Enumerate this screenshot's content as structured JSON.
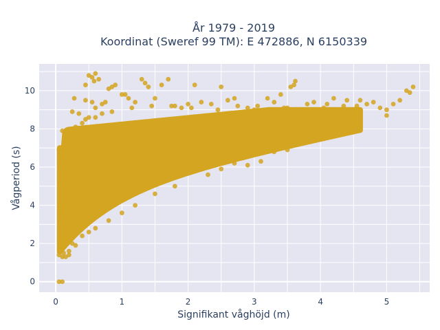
{
  "chart_data": {
    "type": "scatter",
    "title_line1": "År 1979 - 2019",
    "title_line2": "Koordinat (Sweref 99 TM): E 472886, N 6150339",
    "xlabel": "Signifikant våghöjd (m)",
    "ylabel": "Vågperiod (s)",
    "xlim": [
      -0.25,
      5.65
    ],
    "ylim": [
      -0.55,
      11.4
    ],
    "x_ticks": [
      0,
      1,
      2,
      3,
      4,
      5
    ],
    "y_ticks": [
      0,
      2,
      4,
      6,
      8,
      10
    ],
    "x_tick_labels": [
      "0",
      "1",
      "2",
      "3",
      "4",
      "5"
    ],
    "y_tick_labels": [
      "0",
      "2",
      "4",
      "6",
      "8",
      "10"
    ],
    "grid": true,
    "background_color": "#e5e5f2",
    "marker_color": "#d4a520",
    "series": [
      {
        "points": [
          [
            0.05,
            0.0
          ],
          [
            0.1,
            0.0
          ],
          [
            0.05,
            1.4
          ],
          [
            0.1,
            1.3
          ],
          [
            0.15,
            1.3
          ],
          [
            0.2,
            1.4
          ],
          [
            0.1,
            1.8
          ],
          [
            0.15,
            2.2
          ],
          [
            0.2,
            2.6
          ],
          [
            0.3,
            3.0
          ],
          [
            0.08,
            3.8
          ],
          [
            0.06,
            3.7
          ],
          [
            0.1,
            7.9
          ],
          [
            0.15,
            7.7
          ],
          [
            0.2,
            7.5
          ],
          [
            0.05,
            6.9
          ],
          [
            0.08,
            6.5
          ],
          [
            0.12,
            7.0
          ],
          [
            0.3,
            8.1
          ],
          [
            0.4,
            8.3
          ],
          [
            0.5,
            8.6
          ],
          [
            0.25,
            8.9
          ],
          [
            0.35,
            8.8
          ],
          [
            0.45,
            9.5
          ],
          [
            0.28,
            9.6
          ],
          [
            0.55,
            9.4
          ],
          [
            0.6,
            9.1
          ],
          [
            0.7,
            9.3
          ],
          [
            0.75,
            9.4
          ],
          [
            0.45,
            10.3
          ],
          [
            0.5,
            10.8
          ],
          [
            0.55,
            10.7
          ],
          [
            0.6,
            10.9
          ],
          [
            0.58,
            10.5
          ],
          [
            0.8,
            10.1
          ],
          [
            0.85,
            10.2
          ],
          [
            0.9,
            10.3
          ],
          [
            0.65,
            10.6
          ],
          [
            1.0,
            9.8
          ],
          [
            1.05,
            9.8
          ],
          [
            1.1,
            9.6
          ],
          [
            1.2,
            9.4
          ],
          [
            1.3,
            10.6
          ],
          [
            1.35,
            10.4
          ],
          [
            1.4,
            10.2
          ],
          [
            1.5,
            9.6
          ],
          [
            1.6,
            10.3
          ],
          [
            1.7,
            10.6
          ],
          [
            1.8,
            9.2
          ],
          [
            1.9,
            9.1
          ],
          [
            2.0,
            9.3
          ],
          [
            2.1,
            10.3
          ],
          [
            2.2,
            9.4
          ],
          [
            2.5,
            10.2
          ],
          [
            2.6,
            9.5
          ],
          [
            2.7,
            9.6
          ],
          [
            2.9,
            9.1
          ],
          [
            3.0,
            9.0
          ],
          [
            3.2,
            9.6
          ],
          [
            3.3,
            9.4
          ],
          [
            3.4,
            9.8
          ],
          [
            3.5,
            9.1
          ],
          [
            3.6,
            10.3
          ],
          [
            3.62,
            10.5
          ],
          [
            3.55,
            10.2
          ],
          [
            3.8,
            9.3
          ],
          [
            3.9,
            9.4
          ],
          [
            4.1,
            9.3
          ],
          [
            4.2,
            9.6
          ],
          [
            4.4,
            9.5
          ],
          [
            4.6,
            9.5
          ],
          [
            4.8,
            9.4
          ],
          [
            4.9,
            9.1
          ],
          [
            5.0,
            9.0
          ],
          [
            5.1,
            9.3
          ],
          [
            5.2,
            9.5
          ],
          [
            5.3,
            10.0
          ],
          [
            5.35,
            9.9
          ],
          [
            5.4,
            10.2
          ],
          [
            5.0,
            8.7
          ],
          [
            4.5,
            8.6
          ],
          [
            4.3,
            8.3
          ],
          [
            4.2,
            8.1
          ],
          [
            3.8,
            7.6
          ],
          [
            3.5,
            6.9
          ],
          [
            3.3,
            6.8
          ],
          [
            3.1,
            6.3
          ],
          [
            3.0,
            6.7
          ],
          [
            2.9,
            6.1
          ],
          [
            2.8,
            6.6
          ],
          [
            2.7,
            6.2
          ],
          [
            2.5,
            5.9
          ],
          [
            2.3,
            5.6
          ],
          [
            2.2,
            5.9
          ],
          [
            1.8,
            5.0
          ],
          [
            1.5,
            4.6
          ],
          [
            1.2,
            4.0
          ],
          [
            1.0,
            3.6
          ],
          [
            0.8,
            3.2
          ],
          [
            0.6,
            2.8
          ],
          [
            0.5,
            2.6
          ],
          [
            0.4,
            2.4
          ],
          [
            3.6,
            7.2
          ],
          [
            4.0,
            7.9
          ],
          [
            4.3,
            8.9
          ],
          [
            4.55,
            9.2
          ],
          [
            4.7,
            9.3
          ],
          [
            0.3,
            1.9
          ],
          [
            0.2,
            1.6
          ],
          [
            0.25,
            2.0
          ],
          [
            0.12,
            1.5
          ],
          [
            0.3,
            7.2
          ],
          [
            0.22,
            7.9
          ],
          [
            0.4,
            8.0
          ],
          [
            0.45,
            8.5
          ],
          [
            0.6,
            8.6
          ],
          [
            0.7,
            8.8
          ],
          [
            0.85,
            8.9
          ],
          [
            1.15,
            9.1
          ],
          [
            1.45,
            9.2
          ],
          [
            1.75,
            9.2
          ],
          [
            2.05,
            9.1
          ],
          [
            2.35,
            9.3
          ],
          [
            2.45,
            9.0
          ],
          [
            2.75,
            9.2
          ],
          [
            3.05,
            9.2
          ],
          [
            3.15,
            8.9
          ],
          [
            3.45,
            9.1
          ],
          [
            3.75,
            9.0
          ],
          [
            4.05,
            9.1
          ],
          [
            4.25,
            9.0
          ],
          [
            4.35,
            9.2
          ]
        ]
      }
    ]
  }
}
